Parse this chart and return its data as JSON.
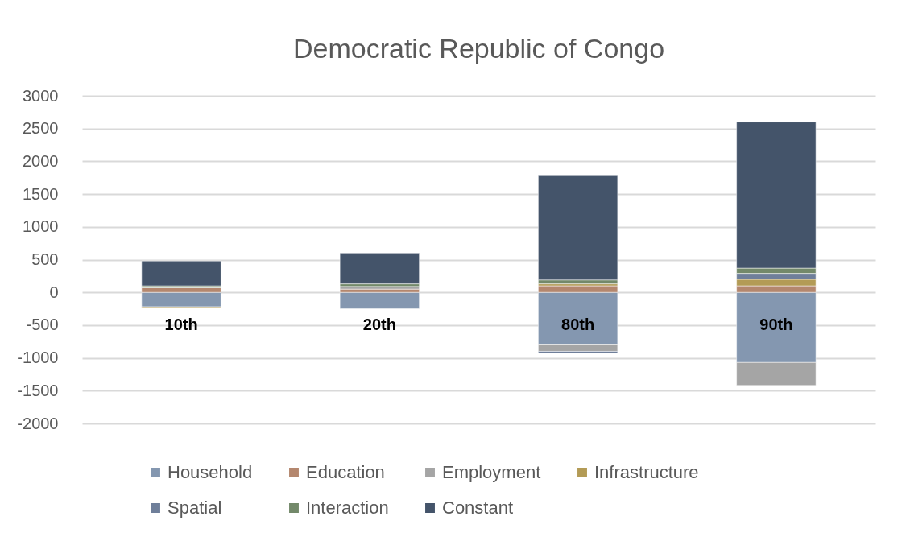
{
  "chart_data": {
    "type": "bar",
    "title": "Democratic Republic of Congo",
    "categories": [
      "10th",
      "20th",
      "80th",
      "90th"
    ],
    "stacked": true,
    "series": [
      {
        "name": "Household",
        "color": "#8497b0",
        "values": [
          -220,
          -250,
          -790,
          -1070
        ]
      },
      {
        "name": "Education",
        "color": "#b4876e",
        "values": [
          70,
          50,
          100,
          100
        ]
      },
      {
        "name": "Employment",
        "color": "#a5a5a5",
        "values": [
          0,
          40,
          -110,
          -350
        ]
      },
      {
        "name": "Infrastructure",
        "color": "#b39b56",
        "values": [
          -10,
          0,
          30,
          100
        ]
      },
      {
        "name": "Spatial",
        "color": "#6f7f9a",
        "values": [
          0,
          0,
          -30,
          90
        ]
      },
      {
        "name": "Interaction",
        "color": "#73896a",
        "values": [
          30,
          40,
          60,
          80
        ]
      },
      {
        "name": "Constant",
        "color": "#44546a",
        "values": [
          380,
          470,
          1590,
          2230
        ]
      }
    ],
    "ylim": [
      -2000,
      3000
    ],
    "yticks": [
      -2000,
      -1500,
      -1000,
      -500,
      0,
      500,
      1000,
      1500,
      2000,
      2500,
      3000
    ],
    "grid": "y",
    "legend": "bottom"
  }
}
